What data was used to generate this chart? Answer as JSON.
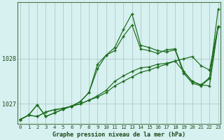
{
  "title": "Graphe pression niveau de la mer (hPa)",
  "background_color": "#d7f0f0",
  "line_color": "#1a6b1a",
  "grid_color": "#b0c8c8",
  "ylim": [
    1026.55,
    1029.25
  ],
  "xlim": [
    -0.3,
    23.3
  ],
  "yticks": [
    1027,
    1028
  ],
  "xticks": [
    0,
    1,
    2,
    3,
    4,
    5,
    6,
    7,
    8,
    9,
    10,
    11,
    12,
    13,
    14,
    15,
    16,
    17,
    18,
    19,
    20,
    21,
    22,
    23
  ],
  "series": [
    [
      1026.65,
      1026.75,
      1026.72,
      1026.82,
      1026.87,
      1026.9,
      1026.95,
      1027.0,
      1027.08,
      1027.15,
      1027.25,
      1027.4,
      1027.5,
      1027.6,
      1027.7,
      1027.75,
      1027.82,
      1027.88,
      1027.95,
      1028.0,
      1028.05,
      1027.85,
      1027.75,
      1028.72
    ],
    [
      1026.65,
      1026.75,
      1026.72,
      1026.82,
      1026.87,
      1026.9,
      1026.95,
      1027.0,
      1027.08,
      1027.18,
      1027.3,
      1027.5,
      1027.62,
      1027.72,
      1027.8,
      1027.82,
      1027.88,
      1027.9,
      1027.95,
      1027.72,
      1027.5,
      1027.42,
      1027.4,
      1028.72
    ],
    [
      1026.65,
      1026.75,
      1026.98,
      1026.72,
      1026.8,
      1026.88,
      1026.95,
      1027.05,
      1027.25,
      1027.88,
      1028.08,
      1028.18,
      1028.5,
      1028.75,
      1028.22,
      1028.18,
      1028.12,
      1028.2,
      1028.22,
      1027.72,
      1027.5,
      1027.42,
      1027.58,
      1028.72
    ],
    [
      1026.65,
      1026.75,
      1026.98,
      1026.72,
      1026.8,
      1026.88,
      1026.95,
      1027.05,
      1027.25,
      1027.78,
      1028.08,
      1028.25,
      1028.65,
      1029.0,
      1028.3,
      1028.25,
      1028.18,
      1028.15,
      1028.2,
      1027.68,
      1027.46,
      1027.4,
      1027.56,
      1029.1
    ]
  ]
}
